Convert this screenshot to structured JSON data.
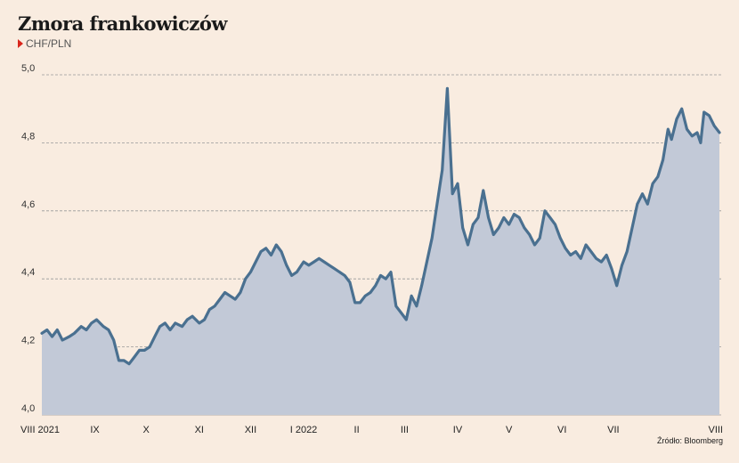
{
  "header": {
    "title": "Zmora frankowiczów",
    "unit": "CHF/PLN"
  },
  "source": "Źródło: Bloomberg",
  "colors": {
    "background": "#f9ece0",
    "line": "#4a7090",
    "area": "#c2c9d7",
    "accent": "#d9261c",
    "grid": "#999999"
  },
  "chart_data": {
    "type": "area",
    "title": "Zmora frankowiczów",
    "ylabel": "CHF/PLN",
    "ylim": [
      4.0,
      5.0
    ],
    "yticks": [
      "4,0",
      "4,2",
      "4,4",
      "4,6",
      "4,8",
      "5,0"
    ],
    "ytick_values": [
      4.0,
      4.2,
      4.4,
      4.6,
      4.8,
      5.0
    ],
    "xticks": [
      "VIII 2021",
      "IX",
      "X",
      "XI",
      "XII",
      "I 2022",
      "II",
      "III",
      "IV",
      "V",
      "VI",
      "VII",
      "VIII"
    ],
    "xtick_dates": [
      "2021-08-01",
      "2021-09-01",
      "2021-10-01",
      "2021-11-01",
      "2021-12-01",
      "2022-01-01",
      "2022-02-01",
      "2022-03-01",
      "2022-04-01",
      "2022-05-01",
      "2022-06-01",
      "2022-07-01",
      "2022-08-01"
    ],
    "grid": "horizontal dashed",
    "series": [
      {
        "points": [
          [
            "2021-08-01",
            4.24
          ],
          [
            "2021-08-04",
            4.25
          ],
          [
            "2021-08-07",
            4.23
          ],
          [
            "2021-08-10",
            4.25
          ],
          [
            "2021-08-13",
            4.22
          ],
          [
            "2021-08-17",
            4.23
          ],
          [
            "2021-08-20",
            4.24
          ],
          [
            "2021-08-24",
            4.26
          ],
          [
            "2021-08-27",
            4.25
          ],
          [
            "2021-08-30",
            4.27
          ],
          [
            "2021-09-02",
            4.28
          ],
          [
            "2021-09-06",
            4.26
          ],
          [
            "2021-09-09",
            4.25
          ],
          [
            "2021-09-12",
            4.22
          ],
          [
            "2021-09-15",
            4.16
          ],
          [
            "2021-09-18",
            4.16
          ],
          [
            "2021-09-21",
            4.15
          ],
          [
            "2021-09-24",
            4.17
          ],
          [
            "2021-09-27",
            4.19
          ],
          [
            "2021-09-30",
            4.19
          ],
          [
            "2021-10-03",
            4.2
          ],
          [
            "2021-10-06",
            4.23
          ],
          [
            "2021-10-09",
            4.26
          ],
          [
            "2021-10-12",
            4.27
          ],
          [
            "2021-10-15",
            4.25
          ],
          [
            "2021-10-18",
            4.27
          ],
          [
            "2021-10-22",
            4.26
          ],
          [
            "2021-10-25",
            4.28
          ],
          [
            "2021-10-28",
            4.29
          ],
          [
            "2021-11-01",
            4.27
          ],
          [
            "2021-11-04",
            4.28
          ],
          [
            "2021-11-07",
            4.31
          ],
          [
            "2021-11-10",
            4.32
          ],
          [
            "2021-11-13",
            4.34
          ],
          [
            "2021-11-16",
            4.36
          ],
          [
            "2021-11-19",
            4.35
          ],
          [
            "2021-11-22",
            4.34
          ],
          [
            "2021-11-25",
            4.36
          ],
          [
            "2021-11-28",
            4.4
          ],
          [
            "2021-12-01",
            4.42
          ],
          [
            "2021-12-04",
            4.45
          ],
          [
            "2021-12-07",
            4.48
          ],
          [
            "2021-12-10",
            4.49
          ],
          [
            "2021-12-13",
            4.47
          ],
          [
            "2021-12-16",
            4.5
          ],
          [
            "2021-12-19",
            4.48
          ],
          [
            "2021-12-22",
            4.44
          ],
          [
            "2021-12-25",
            4.41
          ],
          [
            "2021-12-28",
            4.42
          ],
          [
            "2022-01-01",
            4.45
          ],
          [
            "2022-01-04",
            4.44
          ],
          [
            "2022-01-07",
            4.45
          ],
          [
            "2022-01-10",
            4.46
          ],
          [
            "2022-01-13",
            4.45
          ],
          [
            "2022-01-16",
            4.44
          ],
          [
            "2022-01-19",
            4.43
          ],
          [
            "2022-01-22",
            4.42
          ],
          [
            "2022-01-25",
            4.41
          ],
          [
            "2022-01-28",
            4.39
          ],
          [
            "2022-01-31",
            4.33
          ],
          [
            "2022-02-03",
            4.33
          ],
          [
            "2022-02-06",
            4.35
          ],
          [
            "2022-02-09",
            4.36
          ],
          [
            "2022-02-12",
            4.38
          ],
          [
            "2022-02-15",
            4.41
          ],
          [
            "2022-02-18",
            4.4
          ],
          [
            "2022-02-21",
            4.42
          ],
          [
            "2022-02-24",
            4.32
          ],
          [
            "2022-02-27",
            4.3
          ],
          [
            "2022-03-02",
            4.28
          ],
          [
            "2022-03-05",
            4.35
          ],
          [
            "2022-03-08",
            4.32
          ],
          [
            "2022-03-11",
            4.38
          ],
          [
            "2022-03-14",
            4.45
          ],
          [
            "2022-03-17",
            4.52
          ],
          [
            "2022-03-20",
            4.62
          ],
          [
            "2022-03-23",
            4.72
          ],
          [
            "2022-03-26",
            4.96
          ],
          [
            "2022-03-29",
            4.65
          ],
          [
            "2022-04-01",
            4.68
          ],
          [
            "2022-04-04",
            4.55
          ],
          [
            "2022-04-07",
            4.5
          ],
          [
            "2022-04-10",
            4.56
          ],
          [
            "2022-04-13",
            4.58
          ],
          [
            "2022-04-16",
            4.66
          ],
          [
            "2022-04-19",
            4.58
          ],
          [
            "2022-04-22",
            4.53
          ],
          [
            "2022-04-25",
            4.55
          ],
          [
            "2022-04-28",
            4.58
          ],
          [
            "2022-05-01",
            4.56
          ],
          [
            "2022-05-04",
            4.59
          ],
          [
            "2022-05-07",
            4.58
          ],
          [
            "2022-05-10",
            4.55
          ],
          [
            "2022-05-13",
            4.53
          ],
          [
            "2022-05-16",
            4.5
          ],
          [
            "2022-05-19",
            4.52
          ],
          [
            "2022-05-22",
            4.6
          ],
          [
            "2022-05-25",
            4.58
          ],
          [
            "2022-05-28",
            4.56
          ],
          [
            "2022-05-31",
            4.52
          ],
          [
            "2022-06-03",
            4.49
          ],
          [
            "2022-06-06",
            4.47
          ],
          [
            "2022-06-09",
            4.48
          ],
          [
            "2022-06-12",
            4.46
          ],
          [
            "2022-06-15",
            4.5
          ],
          [
            "2022-06-18",
            4.48
          ],
          [
            "2022-06-21",
            4.46
          ],
          [
            "2022-06-24",
            4.45
          ],
          [
            "2022-06-27",
            4.47
          ],
          [
            "2022-06-30",
            4.43
          ],
          [
            "2022-07-03",
            4.38
          ],
          [
            "2022-07-06",
            4.44
          ],
          [
            "2022-07-09",
            4.48
          ],
          [
            "2022-07-12",
            4.55
          ],
          [
            "2022-07-15",
            4.62
          ],
          [
            "2022-07-18",
            4.65
          ],
          [
            "2022-07-21",
            4.62
          ],
          [
            "2022-07-24",
            4.68
          ],
          [
            "2022-07-27",
            4.7
          ],
          [
            "2022-07-30",
            4.75
          ],
          [
            "2022-08-02",
            4.84
          ],
          [
            "2022-08-04",
            4.81
          ],
          [
            "2022-08-07",
            4.87
          ],
          [
            "2022-08-10",
            4.9
          ],
          [
            "2022-08-13",
            4.84
          ],
          [
            "2022-08-16",
            4.82
          ],
          [
            "2022-08-19",
            4.83
          ],
          [
            "2022-08-21",
            4.8
          ],
          [
            "2022-08-23",
            4.89
          ],
          [
            "2022-08-26",
            4.88
          ],
          [
            "2022-08-29",
            4.85
          ],
          [
            "2022-09-01",
            4.83
          ]
        ]
      }
    ]
  }
}
